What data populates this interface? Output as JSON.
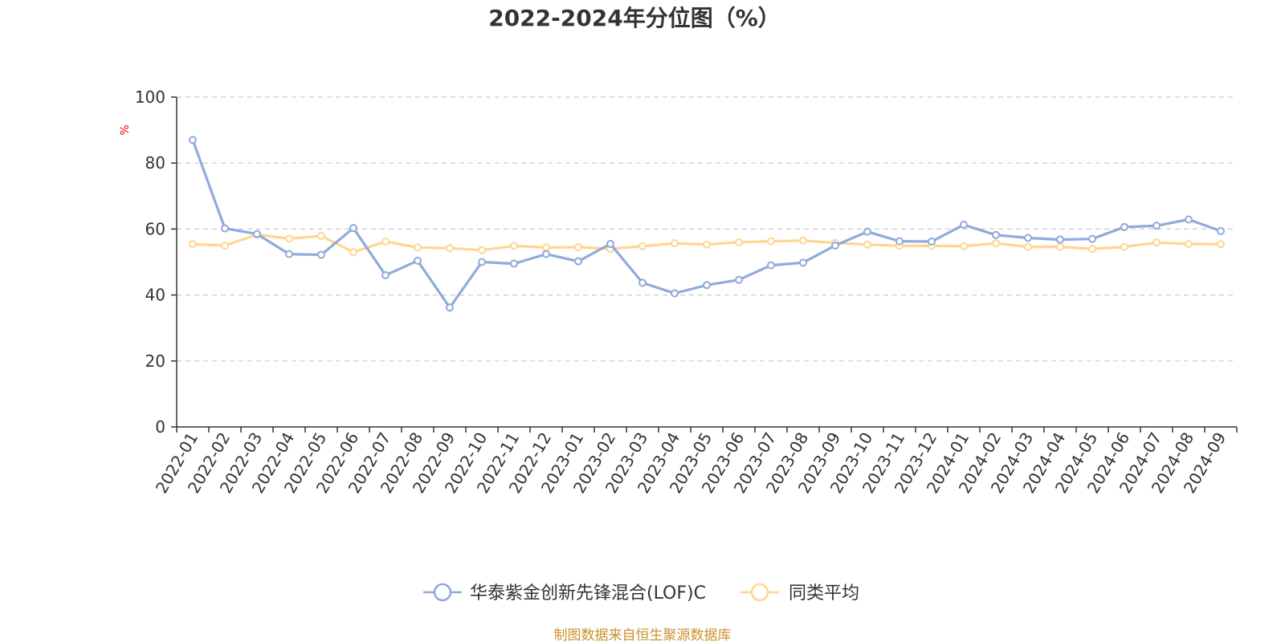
{
  "colors": {
    "series_fund": "#8faadc",
    "series_avg": "#ffd591",
    "unit": "#ff0000",
    "source": "#c8922d",
    "axis": "#333333",
    "grid": "#cccccc"
  },
  "chart_data": {
    "type": "line",
    "title": "2022-2024年分位图（%）",
    "ylabel": "%",
    "xlabel": "",
    "ylim": [
      0,
      100
    ],
    "yticks": [
      0,
      20,
      40,
      60,
      80,
      100
    ],
    "grid": "horizontal dashed",
    "legend_position": "bottom-center",
    "categories": [
      "2022-01",
      "2022-02",
      "2022-03",
      "2022-04",
      "2022-05",
      "2022-06",
      "2022-07",
      "2022-08",
      "2022-09",
      "2022-10",
      "2022-11",
      "2022-12",
      "2023-01",
      "2023-02",
      "2023-03",
      "2023-04",
      "2023-05",
      "2023-06",
      "2023-07",
      "2023-08",
      "2023-09",
      "2023-10",
      "2023-11",
      "2023-12",
      "2024-01",
      "2024-02",
      "2024-03",
      "2024-04",
      "2024-05",
      "2024-06",
      "2024-07",
      "2024-08",
      "2024-09"
    ],
    "series": [
      {
        "name": "华泰紫金创新先锋混合(LOF)C",
        "color_key": "series_fund",
        "values": [
          87,
          60.2,
          58.5,
          52.4,
          52.2,
          60.3,
          46,
          50.4,
          36.2,
          50,
          49.5,
          52.4,
          50.2,
          55.5,
          43.7,
          40.5,
          43,
          44.6,
          49,
          49.8,
          55,
          59.2,
          56.3,
          56.2,
          61.3,
          58.2,
          57.3,
          56.8,
          57,
          60.6,
          61,
          62.9,
          59.4
        ]
      },
      {
        "name": "同类平均",
        "color_key": "series_avg",
        "values": [
          55.4,
          55,
          58.3,
          57.1,
          57.9,
          53,
          56.2,
          54.4,
          54.2,
          53.6,
          54.9,
          54.4,
          54.5,
          54,
          54.8,
          55.7,
          55.3,
          56,
          56.3,
          56.5,
          55.8,
          55.3,
          54.9,
          54.9,
          54.8,
          55.7,
          54.6,
          54.6,
          54,
          54.6,
          55.9,
          55.5,
          55.4
        ]
      }
    ]
  },
  "source_text": "制图数据来自恒生聚源数据库"
}
